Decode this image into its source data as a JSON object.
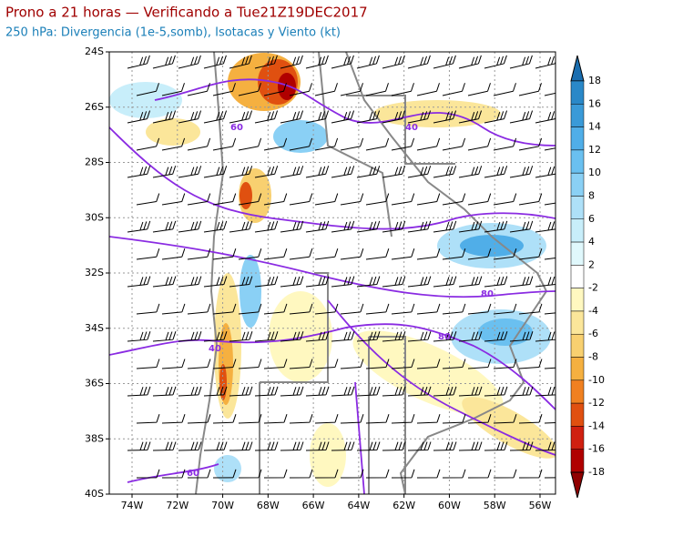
{
  "header": {
    "title": "Prono a 21 horas — Verificando a Tue21Z19DEC2017",
    "subtitle": "250 hPa: Divergencia (1e-5,somb), Isotacas y Viento (kt)"
  },
  "map": {
    "lat_labels": [
      "24S",
      "26S",
      "28S",
      "30S",
      "32S",
      "34S",
      "36S",
      "38S",
      "40S"
    ],
    "lon_labels": [
      "74W",
      "72W",
      "70W",
      "68W",
      "66W",
      "64W",
      "62W",
      "60W",
      "58W",
      "56W"
    ],
    "contour_labels": [
      "60",
      "40",
      "80",
      "40",
      "80",
      "60"
    ]
  },
  "colorbar": {
    "labels": [
      "18",
      "16",
      "14",
      "12",
      "10",
      "8",
      "6",
      "4",
      "2",
      "-2",
      "-4",
      "-6",
      "-8",
      "-10",
      "-12",
      "-14",
      "-16",
      "-18"
    ]
  }
}
